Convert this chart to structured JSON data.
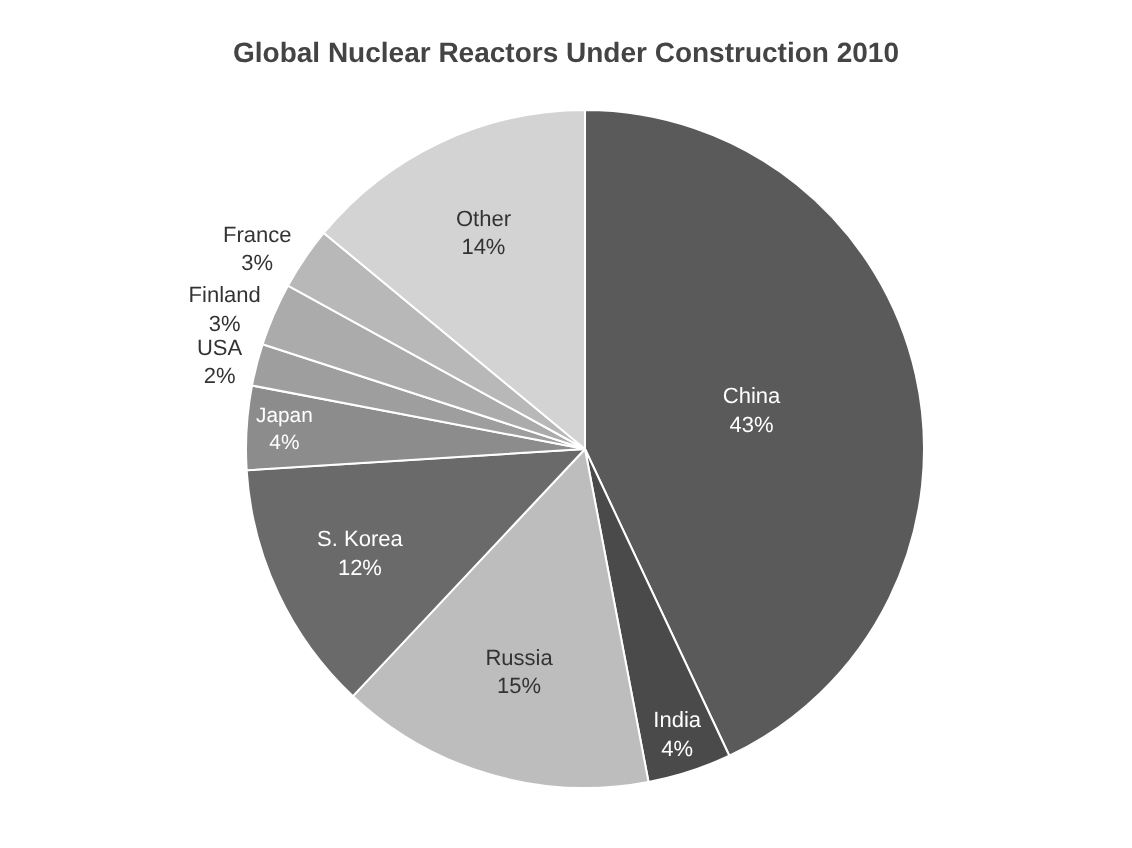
{
  "chart_data": {
    "type": "pie",
    "title": "Global Nuclear Reactors Under Construction 2010",
    "categories": [
      "China",
      "India",
      "Russia",
      "S. Korea",
      "Japan",
      "USA",
      "Finland",
      "France",
      "Other"
    ],
    "values": [
      43,
      4,
      15,
      12,
      4,
      2,
      3,
      3,
      14
    ],
    "value_labels": [
      "43%",
      "4%",
      "15%",
      "12%",
      "4%",
      "2%",
      "3%",
      "3%",
      "14%"
    ],
    "colors": [
      "#5a5a5a",
      "#4a4a4a",
      "#bdbdbd",
      "#6a6a6a",
      "#8c8c8c",
      "#9e9e9e",
      "#ababab",
      "#b8b8b8",
      "#d3d3d3"
    ],
    "legend": false
  }
}
